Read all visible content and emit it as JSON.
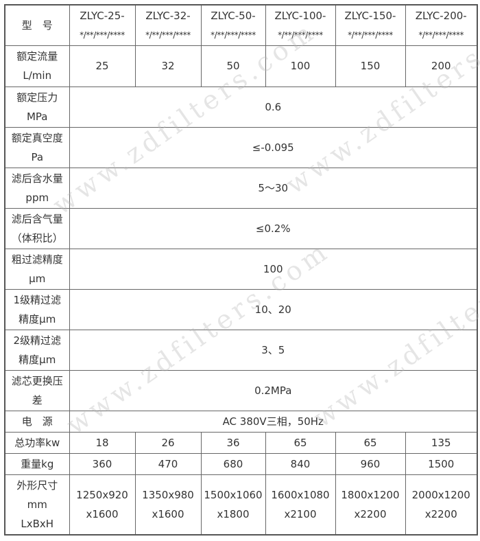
{
  "watermark": "www.zdfilters.com",
  "header": {
    "label": "型　号",
    "models": [
      {
        "line1": "ZLYC-25-",
        "line2": "*/**/***/****"
      },
      {
        "line1": "ZLYC-32-",
        "line2": "*/**/***/****"
      },
      {
        "line1": "ZLYC-50-",
        "line2": "*/**/***/****"
      },
      {
        "line1": "ZLYC-100-",
        "line2": "*/**/***/****"
      },
      {
        "line1": "ZLYC-150-",
        "line2": "*/**/***/****"
      },
      {
        "line1": "ZLYC-200-",
        "line2": "*/**/***/****"
      }
    ]
  },
  "rows": {
    "flow": {
      "l1": "额定流量",
      "l2": "L/min",
      "values": [
        "25",
        "32",
        "50",
        "100",
        "150",
        "200"
      ]
    },
    "pressure": {
      "l1": "额定压力",
      "l2": "MPa",
      "value": "0.6"
    },
    "vacuum": {
      "l1": "额定真空度",
      "l2": "Pa",
      "value": "≤-0.095"
    },
    "water": {
      "l1": "滤后含水量",
      "l2": "ppm",
      "value": "5～30"
    },
    "gas": {
      "l1": "滤后含气量",
      "l2": "（体积比）",
      "value": "≤0.2%"
    },
    "coarse": {
      "l1": "粗过滤精度",
      "l2": "μm",
      "value": "100"
    },
    "fine1": {
      "l1": "1级精过滤",
      "l2": "精度μm",
      "value": "10、20"
    },
    "fine2": {
      "l1": "2级精过滤",
      "l2": "精度μm",
      "value": "3、5"
    },
    "element": {
      "l1": "滤芯更换压",
      "l2": "差",
      "value": "0.2MPa"
    },
    "power_supply": {
      "l1": "电　源",
      "value": "AC 380V三相，50Hz"
    },
    "power": {
      "l1": "总功率kw",
      "values": [
        "18",
        "26",
        "36",
        "65",
        "65",
        "135"
      ]
    },
    "weight": {
      "l1": "重量kg",
      "values": [
        "360",
        "470",
        "680",
        "840",
        "960",
        "1500"
      ]
    },
    "size": {
      "l1": "外形尺寸",
      "l2": "mm",
      "l3": "LxBxH",
      "values": [
        {
          "a": "1250x920",
          "b": "x1600"
        },
        {
          "a": "1350x980",
          "b": "x1600"
        },
        {
          "a": "1500x1060",
          "b": "x1800"
        },
        {
          "a": "1600x1080",
          "b": "x2100"
        },
        {
          "a": "1800x1200",
          "b": "x2200"
        },
        {
          "a": "2000x1200",
          "b": "x2200"
        }
      ]
    }
  }
}
